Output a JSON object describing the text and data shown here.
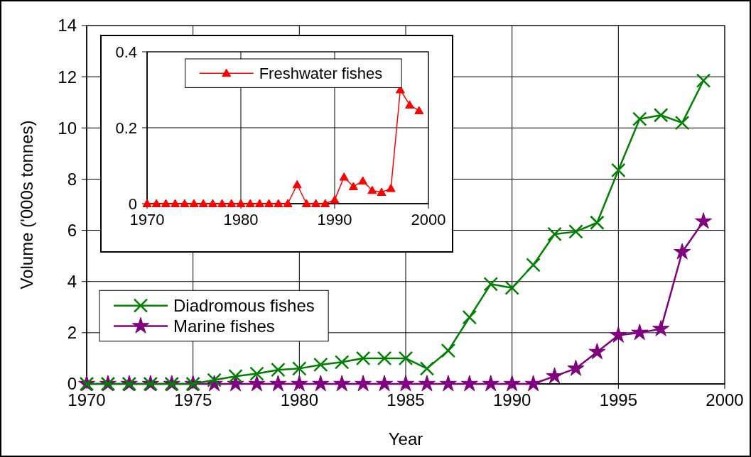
{
  "chart_data": [
    {
      "type": "line",
      "xlabel": "Year",
      "ylabel": "Volume ('000s tonnes)",
      "x": [
        1970,
        1971,
        1972,
        1973,
        1974,
        1975,
        1976,
        1977,
        1978,
        1979,
        1980,
        1981,
        1982,
        1983,
        1984,
        1985,
        1986,
        1987,
        1988,
        1989,
        1990,
        1991,
        1992,
        1993,
        1994,
        1995,
        1996,
        1997,
        1998,
        1999
      ],
      "xlim": [
        1970,
        2000
      ],
      "xticks": [
        1970,
        1975,
        1980,
        1985,
        1990,
        1995,
        2000
      ],
      "ylim": [
        0,
        14
      ],
      "yticks": [
        0,
        2,
        4,
        6,
        8,
        10,
        12,
        14
      ],
      "grid": true,
      "legend": "left",
      "line_style": "solid",
      "series": [
        {
          "name": "Diadromous fishes",
          "color": "#008000",
          "marker": "cross",
          "values": [
            0,
            0,
            0,
            0,
            0,
            0,
            0.15,
            0.3,
            0.4,
            0.55,
            0.6,
            0.75,
            0.85,
            1.0,
            1.0,
            1.0,
            0.6,
            1.3,
            2.6,
            3.9,
            3.75,
            4.65,
            5.85,
            5.95,
            6.3,
            8.35,
            10.35,
            10.5,
            10.2,
            11.85
          ]
        },
        {
          "name": "Marine fishes",
          "color": "#800080",
          "marker": "star",
          "values": [
            0,
            0,
            0,
            0,
            0,
            0,
            0,
            0,
            0,
            0,
            0,
            0,
            0,
            0,
            0,
            0,
            0,
            0,
            0,
            0,
            0,
            0,
            0.3,
            0.6,
            1.25,
            1.9,
            2.0,
            2.15,
            5.15,
            6.35
          ]
        }
      ]
    },
    {
      "type": "line",
      "x": [
        1970,
        1971,
        1972,
        1973,
        1974,
        1975,
        1976,
        1977,
        1978,
        1979,
        1980,
        1981,
        1982,
        1983,
        1984,
        1985,
        1986,
        1987,
        1988,
        1989,
        1990,
        1991,
        1992,
        1993,
        1994,
        1995,
        1996,
        1997,
        1998,
        1999
      ],
      "xlim": [
        1970,
        2000
      ],
      "xticks": [
        1970,
        1980,
        1990,
        2000
      ],
      "ylim": [
        0,
        0.4
      ],
      "yticks": [
        0,
        0.2,
        0.4
      ],
      "grid": true,
      "legend": "top",
      "line_style": "solid",
      "series": [
        {
          "name": "Freshwater fishes",
          "color": "#ff0000",
          "marker": "triangle",
          "values": [
            0,
            0,
            0,
            0,
            0,
            0,
            0,
            0,
            0,
            0,
            0,
            0,
            0,
            0,
            0,
            0,
            0.05,
            0,
            0,
            0,
            0.01,
            0.07,
            0.045,
            0.06,
            0.035,
            0.03,
            0.04,
            0.3,
            0.26,
            0.245
          ]
        }
      ]
    }
  ]
}
